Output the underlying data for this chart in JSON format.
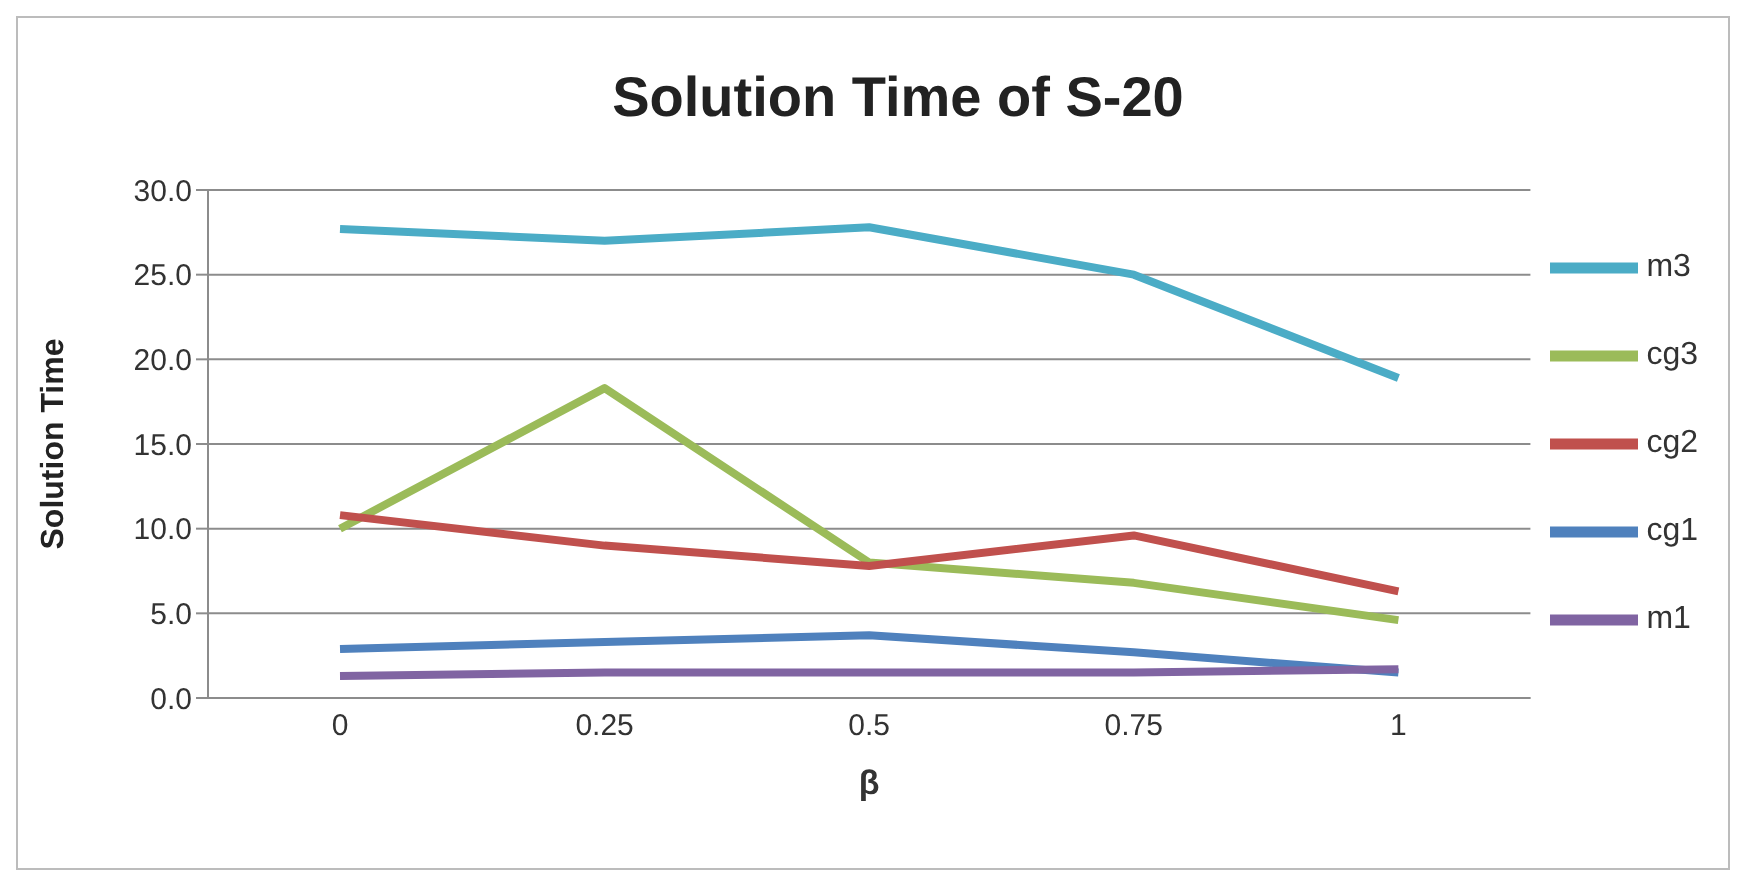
{
  "chart_data": {
    "type": "line",
    "title": "Solution Time of S-20",
    "xlabel": "β",
    "ylabel": "Solution Time",
    "categories": [
      "0",
      "0.25",
      "0.5",
      "0.75",
      "1"
    ],
    "series": [
      {
        "name": "m3",
        "color": "#4bacc6",
        "values": [
          27.7,
          27.0,
          27.8,
          25.0,
          18.9
        ]
      },
      {
        "name": "cg3",
        "color": "#9bbb59",
        "values": [
          10.0,
          18.3,
          8.0,
          6.8,
          4.6
        ]
      },
      {
        "name": "cg2",
        "color": "#c0504d",
        "values": [
          10.8,
          9.0,
          7.8,
          9.6,
          6.3
        ]
      },
      {
        "name": "cg1",
        "color": "#4f81bd",
        "values": [
          2.9,
          3.3,
          3.7,
          2.7,
          1.5
        ]
      },
      {
        "name": "m1",
        "color": "#8064a2",
        "values": [
          1.3,
          1.5,
          1.5,
          1.5,
          1.7
        ]
      }
    ],
    "ylim": [
      0,
      30
    ],
    "yticks": [
      {
        "value": 0,
        "label": "0.0"
      },
      {
        "value": 5,
        "label": "5.0"
      },
      {
        "value": 10,
        "label": "10.0"
      },
      {
        "value": 15,
        "label": "15.0"
      },
      {
        "value": 20,
        "label": "20.0"
      },
      {
        "value": 25,
        "label": "25.0"
      },
      {
        "value": 30,
        "label": "30.0"
      }
    ],
    "grid": "y",
    "legend": "right",
    "marker": "none",
    "line_style": "solid"
  }
}
